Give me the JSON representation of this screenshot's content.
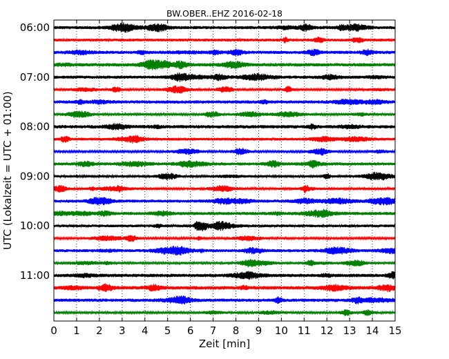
{
  "chart_data": {
    "type": "line",
    "title": "BW.OBER..EHZ 2016-02-18",
    "xlabel": "Zeit  [min]",
    "ylabel": "UTC (Lokalzeit = UTC + 01:00)",
    "xlim": [
      0,
      15
    ],
    "x_ticks": [
      0,
      1,
      2,
      3,
      4,
      5,
      6,
      7,
      8,
      9,
      10,
      11,
      12,
      13,
      14,
      15
    ],
    "y_tick_labels": [
      "06:00",
      "07:00",
      "08:00",
      "09:00",
      "10:00",
      "11:00"
    ],
    "grid": "vertical dotted",
    "trace_interval_min": 15,
    "start_time": "06:00",
    "trace_colors": [
      "#000000",
      "#ff0000",
      "#0000ff",
      "#008000"
    ],
    "series": [
      {
        "start": "06:00",
        "color": "#000000"
      },
      {
        "start": "06:15",
        "color": "#ff0000"
      },
      {
        "start": "06:30",
        "color": "#0000ff"
      },
      {
        "start": "06:45",
        "color": "#008000"
      },
      {
        "start": "07:00",
        "color": "#000000"
      },
      {
        "start": "07:15",
        "color": "#ff0000"
      },
      {
        "start": "07:30",
        "color": "#0000ff"
      },
      {
        "start": "07:45",
        "color": "#008000"
      },
      {
        "start": "08:00",
        "color": "#000000"
      },
      {
        "start": "08:15",
        "color": "#ff0000"
      },
      {
        "start": "08:30",
        "color": "#0000ff"
      },
      {
        "start": "08:45",
        "color": "#008000"
      },
      {
        "start": "09:00",
        "color": "#000000"
      },
      {
        "start": "09:15",
        "color": "#ff0000"
      },
      {
        "start": "09:30",
        "color": "#0000ff"
      },
      {
        "start": "09:45",
        "color": "#008000"
      },
      {
        "start": "10:00",
        "color": "#000000"
      },
      {
        "start": "10:15",
        "color": "#ff0000"
      },
      {
        "start": "10:30",
        "color": "#0000ff"
      },
      {
        "start": "10:45",
        "color": "#008000"
      },
      {
        "start": "11:00",
        "color": "#000000"
      },
      {
        "start": "11:15",
        "color": "#ff0000"
      },
      {
        "start": "11:30",
        "color": "#0000ff"
      },
      {
        "start": "11:45",
        "color": "#008000"
      }
    ]
  }
}
